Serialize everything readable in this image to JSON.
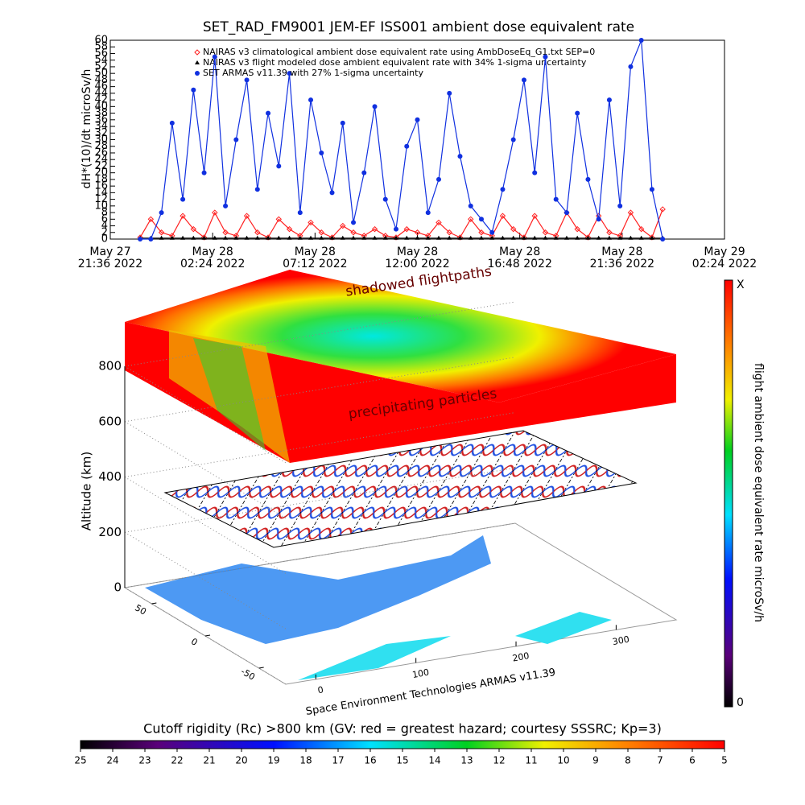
{
  "chart_data": [
    {
      "type": "line",
      "title": "SET_RAD_FM9001  JEM-EF ISS001 ambient dose equivalent rate",
      "ylabel": "dH*(10)/dt microSv/h",
      "x": [
        "2022-05-27T23:00",
        "2022-05-27T23:30",
        "2022-05-28T00:00",
        "2022-05-28T00:30",
        "2022-05-28T01:00",
        "2022-05-28T01:30",
        "2022-05-28T02:00",
        "2022-05-28T02:30",
        "2022-05-28T03:00",
        "2022-05-28T03:30",
        "2022-05-28T04:00",
        "2022-05-28T04:30",
        "2022-05-28T05:00",
        "2022-05-28T05:30",
        "2022-05-28T06:00",
        "2022-05-28T06:30",
        "2022-05-28T07:00",
        "2022-05-28T07:30",
        "2022-05-28T08:00",
        "2022-05-28T08:30",
        "2022-05-28T09:00",
        "2022-05-28T09:30",
        "2022-05-28T10:00",
        "2022-05-28T10:30",
        "2022-05-28T11:00",
        "2022-05-28T11:30",
        "2022-05-28T12:00",
        "2022-05-28T12:30",
        "2022-05-28T13:00",
        "2022-05-28T13:30",
        "2022-05-28T14:00",
        "2022-05-28T14:30",
        "2022-05-28T15:00",
        "2022-05-28T15:30",
        "2022-05-28T16:00",
        "2022-05-28T16:30",
        "2022-05-28T17:00",
        "2022-05-28T17:30",
        "2022-05-28T18:00",
        "2022-05-28T18:30",
        "2022-05-28T19:00",
        "2022-05-28T19:30",
        "2022-05-28T20:00",
        "2022-05-28T20:30",
        "2022-05-28T21:00",
        "2022-05-28T21:30",
        "2022-05-28T22:00",
        "2022-05-28T22:30",
        "2022-05-28T23:00",
        "2022-05-28T23:30"
      ],
      "series": [
        {
          "name": "NAIRAS v3 climatological ambient dose equivalent rate using AmbDoseEq_G1.txt SEP=0",
          "color": "#ff2020",
          "marker": "diamond",
          "values": [
            0.5,
            6,
            2,
            1,
            7,
            3,
            0.5,
            8,
            2,
            1,
            7,
            2,
            0.5,
            6,
            3,
            1,
            5,
            2,
            0.5,
            4,
            2,
            1,
            3,
            1,
            0.5,
            3,
            2,
            1,
            5,
            2,
            0.5,
            6,
            2,
            1,
            7,
            3,
            0.5,
            7,
            2,
            1,
            8,
            3,
            0.5,
            7,
            2,
            1,
            8,
            3,
            0.5,
            9
          ]
        },
        {
          "name": "NAIRAS v3 flight modeled dose ambient equivalent rate with 34% 1-sigma uncertainty",
          "color": "#000000",
          "marker": "triangle",
          "values": [
            0.3,
            0.3,
            0.3,
            0.3,
            0.3,
            0.3,
            0.3,
            0.3,
            0.3,
            0.3,
            0.3,
            0.3,
            0.3,
            0.3,
            0.3,
            0.3,
            0.3,
            0.3,
            0.3,
            0.3,
            0.3,
            0.3,
            0.3,
            0.3,
            0.3,
            0.3,
            0.3,
            0.3,
            0.3,
            0.3,
            0.3,
            0.3,
            0.3,
            0.3,
            0.3,
            0.3,
            0.3,
            0.3,
            0.3,
            0.3,
            0.3,
            0.3,
            0.3,
            0.3,
            0.3,
            0.3,
            0.3,
            0.3,
            0.3,
            0.3
          ]
        },
        {
          "name": "SET ARMAS v11.39 with 27% 1-sigma uncertainty",
          "color": "#1030e0",
          "marker": "circle",
          "values": [
            0,
            0,
            8,
            35,
            12,
            45,
            20,
            55,
            10,
            30,
            48,
            15,
            38,
            22,
            50,
            8,
            42,
            26,
            14,
            35,
            5,
            20,
            40,
            12,
            3,
            28,
            36,
            8,
            18,
            44,
            25,
            10,
            6,
            2,
            15,
            30,
            48,
            20,
            55,
            12,
            8,
            38,
            18,
            6,
            42,
            10,
            52,
            60,
            15,
            0
          ]
        }
      ],
      "xlim": [
        "2022-05-27T21:36",
        "2022-05-29T02:24"
      ],
      "xticks": [
        {
          "value": "2022-05-27T21:36",
          "label": "May 27 21:36 2022"
        },
        {
          "value": "2022-05-28T02:24",
          "label": "May 28 02:24 2022"
        },
        {
          "value": "2022-05-28T07:12",
          "label": "May 28 07:12 2022"
        },
        {
          "value": "2022-05-28T12:00",
          "label": "May 28 12:00 2022"
        },
        {
          "value": "2022-05-28T16:48",
          "label": "May 28 16:48 2022"
        },
        {
          "value": "2022-05-28T21:36",
          "label": "May 28 21:36 2022"
        },
        {
          "value": "2022-05-29T02:24",
          "label": "May 29 02:24 2022"
        }
      ],
      "ylim": [
        0,
        60
      ],
      "yticks": [
        0,
        2,
        4,
        6,
        8,
        10,
        12,
        14,
        16,
        18,
        20,
        22,
        24,
        26,
        28,
        30,
        32,
        34,
        36,
        38,
        40,
        42,
        44,
        46,
        48,
        50,
        52,
        54,
        56,
        58,
        60
      ]
    },
    {
      "type": "scene3d",
      "zlabel": "Altitude (km)",
      "upper_label": "shadowed flightpaths",
      "lower_label": "precipitating particles",
      "footer": "Space Environment Technologies ARMAS v11.39",
      "xlim": [
        -30,
        360
      ],
      "xticks": [
        0,
        100,
        200,
        300
      ],
      "ylim": [
        -75,
        75
      ],
      "yticks": [
        -50,
        0,
        50
      ],
      "zlim": [
        0,
        800
      ],
      "zticks": [
        0,
        200,
        400,
        600,
        800
      ]
    },
    {
      "type": "colorbar",
      "orientation": "vertical",
      "label": "flight ambient dose equivalent rate microSv/h",
      "bottom_tick": 0,
      "top_tick": "X"
    },
    {
      "type": "colorbar",
      "orientation": "horizontal",
      "label": "Cutoff rigidity (Rc) >800 km (GV: red = greatest hazard; courtesy SSSRC; Kp=3)",
      "clim": [
        25,
        5
      ],
      "ticks": [
        25,
        24,
        23,
        22,
        21,
        20,
        19,
        18,
        17,
        16,
        15,
        14,
        13,
        12,
        11,
        10,
        9,
        8,
        7,
        6,
        5
      ]
    }
  ]
}
